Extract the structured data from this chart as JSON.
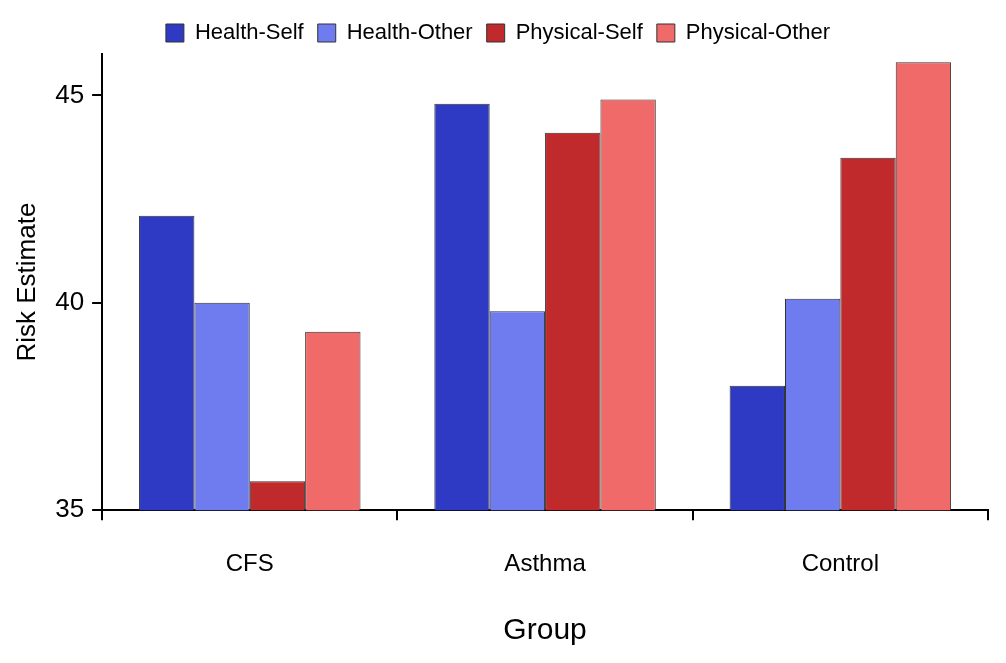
{
  "chart_data": {
    "type": "bar",
    "xlabel": "Group",
    "ylabel": "Risk Estimate",
    "categories": [
      "CFS",
      "Asthma",
      "Control"
    ],
    "series": [
      {
        "name": "Health-Self",
        "color": "#2f3ac4",
        "values": [
          42.1,
          44.8,
          38.0
        ]
      },
      {
        "name": "Health-Other",
        "color": "#6f7cf0",
        "values": [
          40.0,
          39.8,
          40.1
        ]
      },
      {
        "name": "Physical-Self",
        "color": "#c02a2c",
        "values": [
          35.7,
          44.1,
          43.5
        ]
      },
      {
        "name": "Physical-Other",
        "color": "#f06a6a",
        "values": [
          39.3,
          44.9,
          45.8
        ]
      }
    ],
    "ylim": [
      35,
      46
    ],
    "yticks": [
      35,
      40,
      45
    ],
    "grid": false,
    "legend": "top"
  }
}
